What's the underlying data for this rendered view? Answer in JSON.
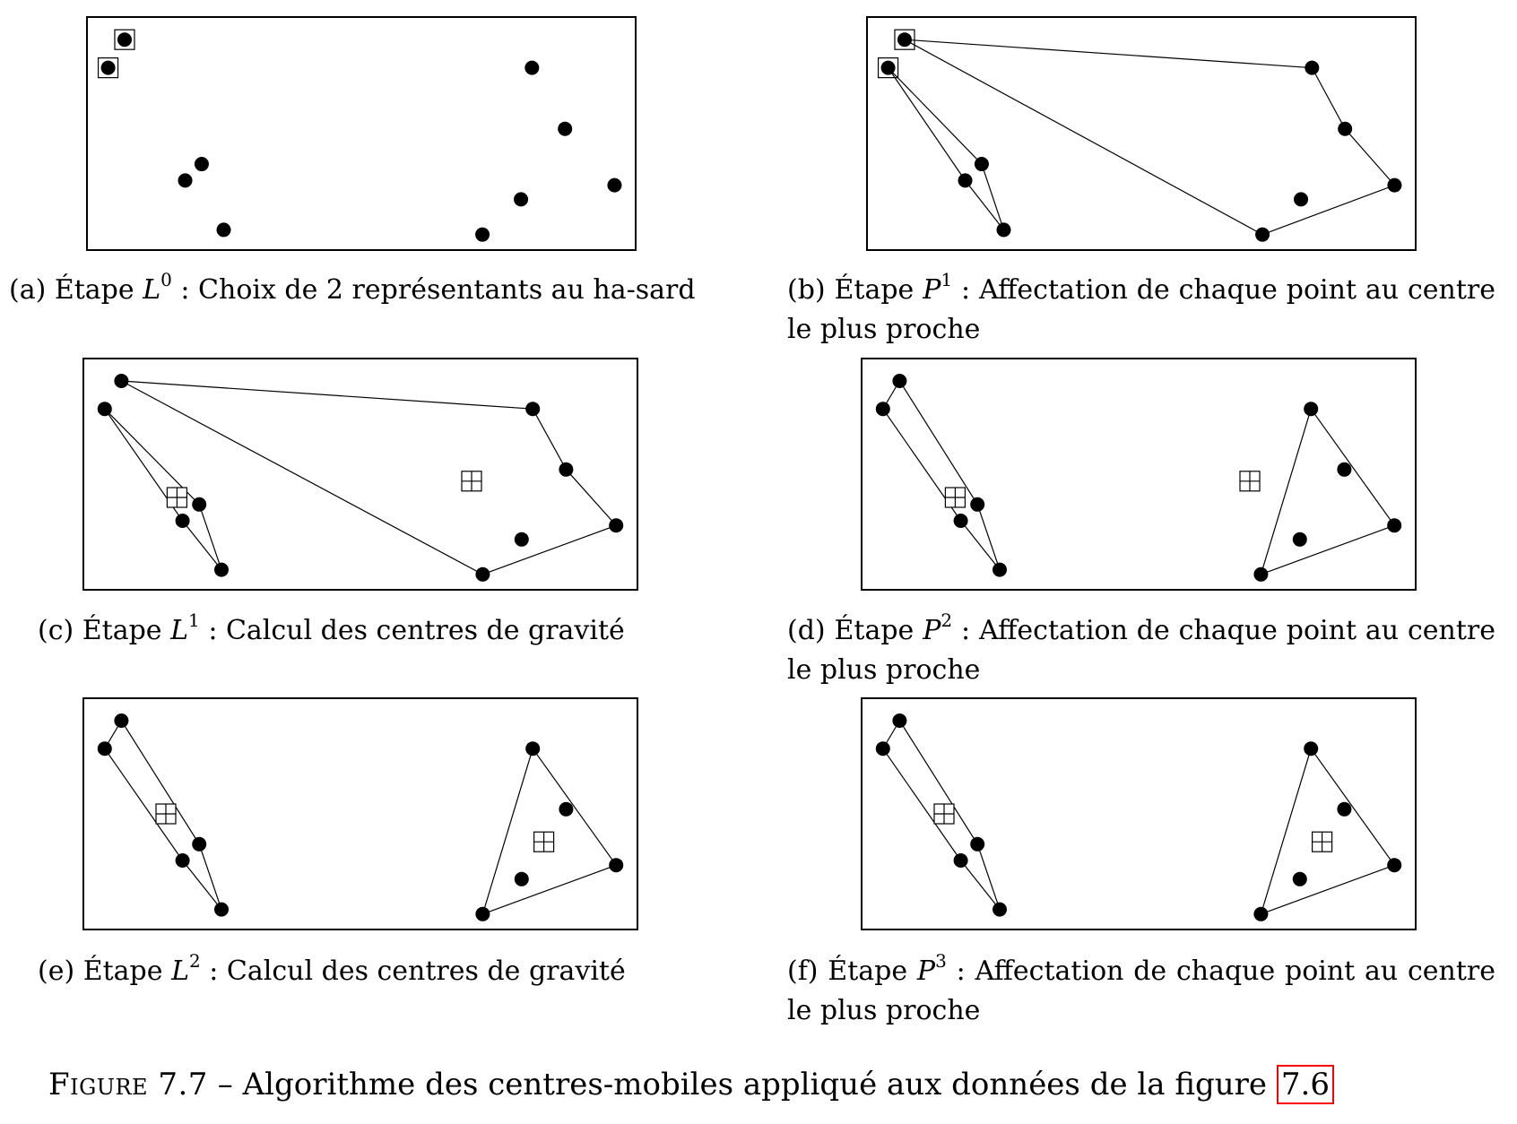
{
  "colors": {
    "ink": "#000000",
    "reference_box": "#ff0000",
    "background": "#ffffff"
  },
  "panels": [
    {
      "id": "a",
      "sub_label": "(a)",
      "step_word": "Étape",
      "step_symbol": "L",
      "step_exponent": "0",
      "step_rest": ": Choix de 2 représentants au ha-sard",
      "points": [
        [
          0.07,
          0.1
        ],
        [
          0.04,
          0.22
        ],
        [
          0.21,
          0.63
        ],
        [
          0.18,
          0.7
        ],
        [
          0.25,
          0.91
        ],
        [
          0.81,
          0.22
        ],
        [
          0.87,
          0.48
        ],
        [
          0.96,
          0.72
        ],
        [
          0.79,
          0.78
        ],
        [
          0.72,
          0.93
        ]
      ],
      "representatives": [
        0,
        1
      ],
      "clusters": [],
      "centers": []
    },
    {
      "id": "b",
      "sub_label": "(b)",
      "step_word": "Étape",
      "step_symbol": "P",
      "step_exponent": "1",
      "step_rest": ": Affectation de chaque point au centre le plus proche",
      "points": [
        [
          0.07,
          0.1
        ],
        [
          0.04,
          0.22
        ],
        [
          0.21,
          0.63
        ],
        [
          0.18,
          0.7
        ],
        [
          0.25,
          0.91
        ],
        [
          0.81,
          0.22
        ],
        [
          0.87,
          0.48
        ],
        [
          0.96,
          0.72
        ],
        [
          0.79,
          0.78
        ],
        [
          0.72,
          0.93
        ]
      ],
      "representatives": [
        0,
        1
      ],
      "clusters": [
        [
          1,
          2,
          4,
          3
        ],
        [
          0,
          5,
          6,
          7,
          9
        ]
      ],
      "centers": []
    },
    {
      "id": "c",
      "sub_label": "(c)",
      "step_word": "Étape",
      "step_symbol": "L",
      "step_exponent": "1",
      "step_rest": ": Calcul des centres de gravité",
      "points": [
        [
          0.07,
          0.1
        ],
        [
          0.04,
          0.22
        ],
        [
          0.21,
          0.63
        ],
        [
          0.18,
          0.7
        ],
        [
          0.25,
          0.91
        ],
        [
          0.81,
          0.22
        ],
        [
          0.87,
          0.48
        ],
        [
          0.96,
          0.72
        ],
        [
          0.79,
          0.78
        ],
        [
          0.72,
          0.93
        ]
      ],
      "representatives": [],
      "clusters": [
        [
          1,
          2,
          4,
          3
        ],
        [
          0,
          5,
          6,
          7,
          9
        ]
      ],
      "centers": [
        [
          0.17,
          0.6
        ],
        [
          0.7,
          0.53
        ]
      ]
    },
    {
      "id": "d",
      "sub_label": "(d)",
      "step_word": "Étape",
      "step_symbol": "P",
      "step_exponent": "2",
      "step_rest": ": Affectation de chaque point au centre le plus proche",
      "points": [
        [
          0.07,
          0.1
        ],
        [
          0.04,
          0.22
        ],
        [
          0.21,
          0.63
        ],
        [
          0.18,
          0.7
        ],
        [
          0.25,
          0.91
        ],
        [
          0.81,
          0.22
        ],
        [
          0.87,
          0.48
        ],
        [
          0.96,
          0.72
        ],
        [
          0.79,
          0.78
        ],
        [
          0.72,
          0.93
        ]
      ],
      "representatives": [],
      "clusters": [
        [
          0,
          1,
          3,
          4,
          2
        ],
        [
          5,
          7,
          9
        ]
      ],
      "centers": [
        [
          0.17,
          0.6
        ],
        [
          0.7,
          0.53
        ]
      ]
    },
    {
      "id": "e",
      "sub_label": "(e)",
      "step_word": "Étape",
      "step_symbol": "L",
      "step_exponent": "2",
      "step_rest": ": Calcul des centres de gravité",
      "points": [
        [
          0.07,
          0.1
        ],
        [
          0.04,
          0.22
        ],
        [
          0.21,
          0.63
        ],
        [
          0.18,
          0.7
        ],
        [
          0.25,
          0.91
        ],
        [
          0.81,
          0.22
        ],
        [
          0.87,
          0.48
        ],
        [
          0.96,
          0.72
        ],
        [
          0.79,
          0.78
        ],
        [
          0.72,
          0.93
        ]
      ],
      "representatives": [],
      "clusters": [
        [
          0,
          1,
          3,
          4,
          2
        ],
        [
          5,
          7,
          9
        ]
      ],
      "centers": [
        [
          0.15,
          0.5
        ],
        [
          0.83,
          0.62
        ]
      ]
    },
    {
      "id": "f",
      "sub_label": "(f)",
      "step_word": "Étape",
      "step_symbol": "P",
      "step_exponent": "3",
      "step_rest": ": Affectation de chaque point au centre le plus proche",
      "points": [
        [
          0.07,
          0.1
        ],
        [
          0.04,
          0.22
        ],
        [
          0.21,
          0.63
        ],
        [
          0.18,
          0.7
        ],
        [
          0.25,
          0.91
        ],
        [
          0.81,
          0.22
        ],
        [
          0.87,
          0.48
        ],
        [
          0.96,
          0.72
        ],
        [
          0.79,
          0.78
        ],
        [
          0.72,
          0.93
        ]
      ],
      "representatives": [],
      "clusters": [
        [
          0,
          1,
          3,
          4,
          2
        ],
        [
          5,
          7,
          9
        ]
      ],
      "centers": [
        [
          0.15,
          0.5
        ],
        [
          0.83,
          0.62
        ]
      ]
    }
  ],
  "figure": {
    "label": "Figure 7.7",
    "dash": "–",
    "text": "Algorithme des centres-mobiles appliqué aux données de la figure",
    "reference": "7.6"
  }
}
